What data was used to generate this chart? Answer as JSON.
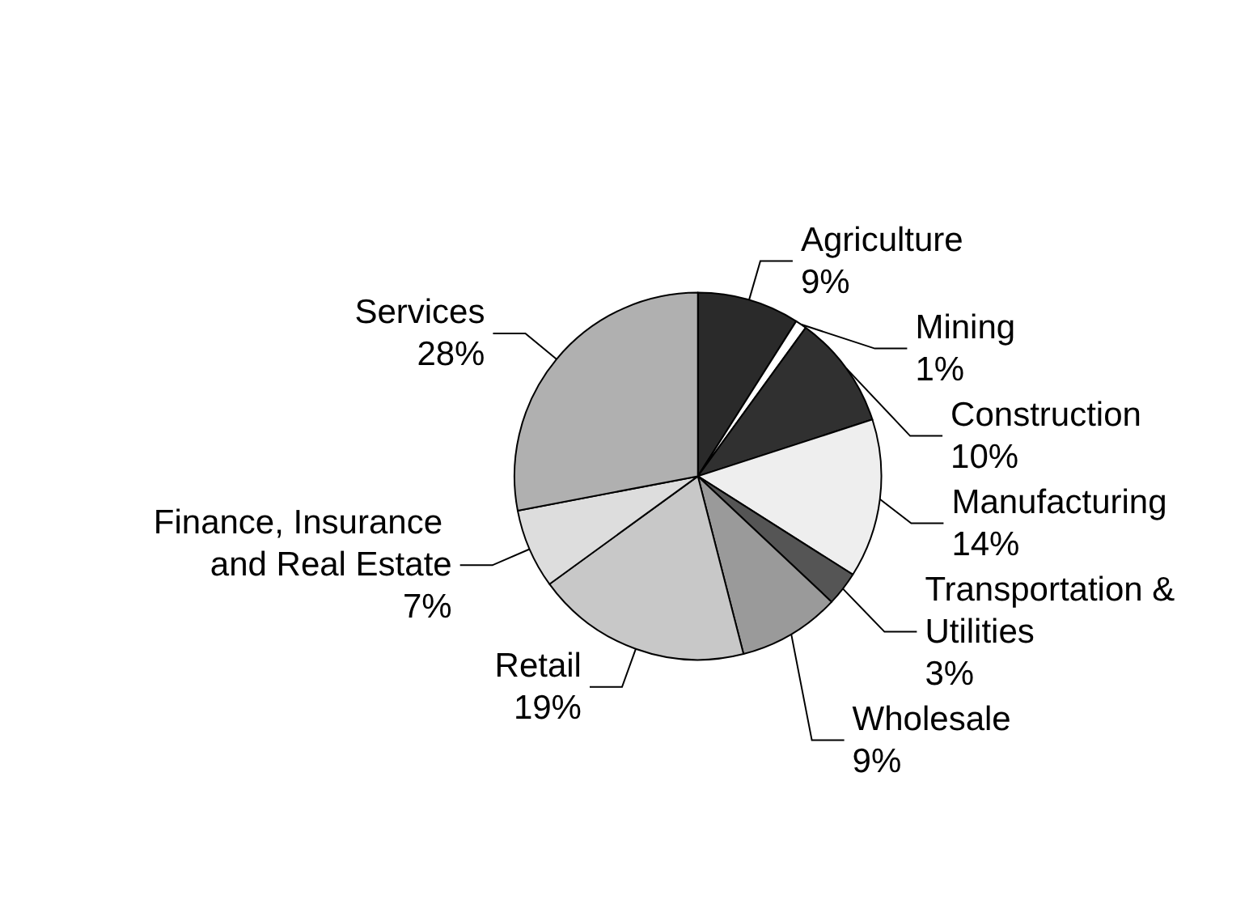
{
  "chart_data": {
    "type": "pie",
    "categories": [
      "Agriculture",
      "Mining",
      "Construction",
      "Manufacturing",
      "Transportation & Utilities",
      "Wholesale",
      "Retail",
      "Finance, Insurance and Real Estate",
      "Services"
    ],
    "values": [
      9,
      1,
      10,
      14,
      3,
      9,
      19,
      7,
      28
    ],
    "value_labels": [
      "9%",
      "1%",
      "10%",
      "14%",
      "3%",
      "9%",
      "19%",
      "7%",
      "28%"
    ],
    "colors": [
      "#2a2a2a",
      "#ffffff",
      "#303030",
      "#eeeeee",
      "#555555",
      "#9a9a9a",
      "#c8c8c8",
      "#dddddd",
      "#b0b0b0"
    ],
    "legend": false
  }
}
